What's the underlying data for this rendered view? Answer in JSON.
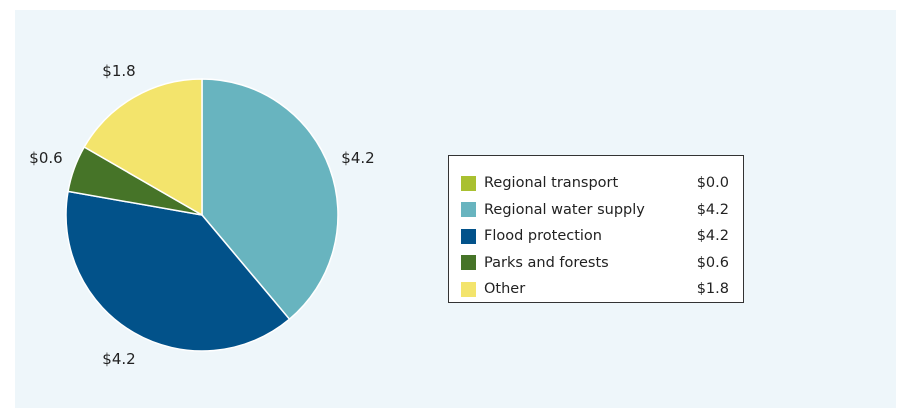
{
  "chart_data": {
    "type": "pie",
    "slices": [
      {
        "name": "Regional transport",
        "value": 0.0,
        "label": "",
        "color": "#a9c030"
      },
      {
        "name": "Regional water supply",
        "value": 4.2,
        "label": "$4.2",
        "color": "#68b4bf"
      },
      {
        "name": "Flood protection",
        "value": 4.2,
        "label": "$4.2",
        "color": "#02528a"
      },
      {
        "name": "Parks and forests",
        "value": 0.6,
        "label": "$0.6",
        "color": "#467428"
      },
      {
        "name": "Other",
        "value": 1.8,
        "label": "$1.8",
        "color": "#f3e46c"
      }
    ],
    "legend": {
      "placement": "right",
      "entries": [
        {
          "name": "Regional transport",
          "value": "$0.0",
          "color": "#a9c030"
        },
        {
          "name": "Regional water supply",
          "value": "$4.2",
          "color": "#68b4bf"
        },
        {
          "name": "Flood protection",
          "value": "$4.2",
          "color": "#02528a"
        },
        {
          "name": "Parks and forests",
          "value": "$0.6",
          "color": "#467428"
        },
        {
          "name": "Other",
          "value": "$1.8",
          "color": "#f3e46c"
        }
      ]
    }
  }
}
